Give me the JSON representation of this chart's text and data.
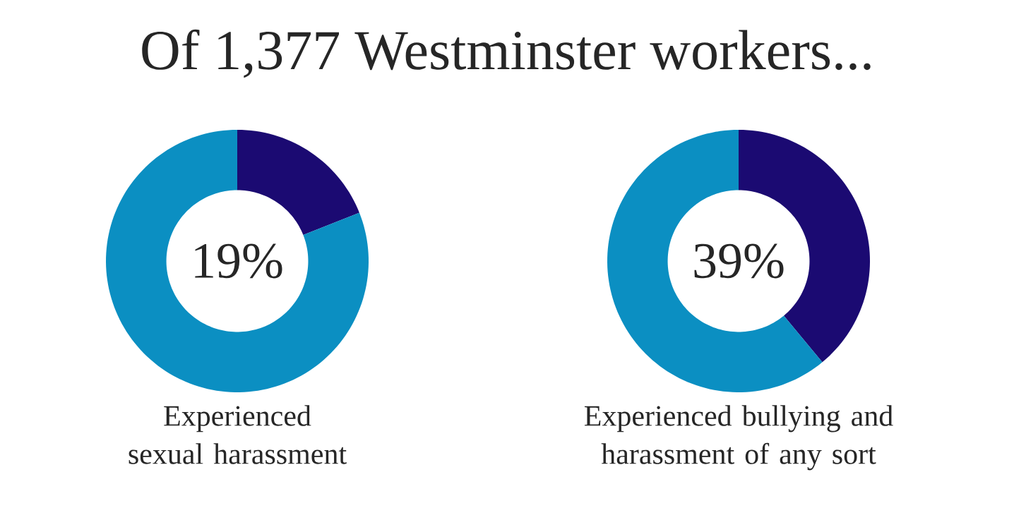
{
  "chart_data": [
    {
      "type": "donut",
      "title": "Of 1,377 Westminster workers...",
      "categories": [
        null,
        null
      ],
      "values": [
        19,
        81
      ],
      "colors": [
        "#1b0a72",
        "#0b8fc2"
      ],
      "annotations": [
        "19%"
      ],
      "xlabel": "Experienced sexual harassment"
    },
    {
      "type": "donut",
      "categories": [
        null,
        null
      ],
      "values": [
        39,
        61
      ],
      "colors": [
        "#1b0a72",
        "#0b8fc2"
      ],
      "annotations": [
        "39%"
      ],
      "xlabel": "Experienced bullying and harassment of any sort"
    }
  ]
}
